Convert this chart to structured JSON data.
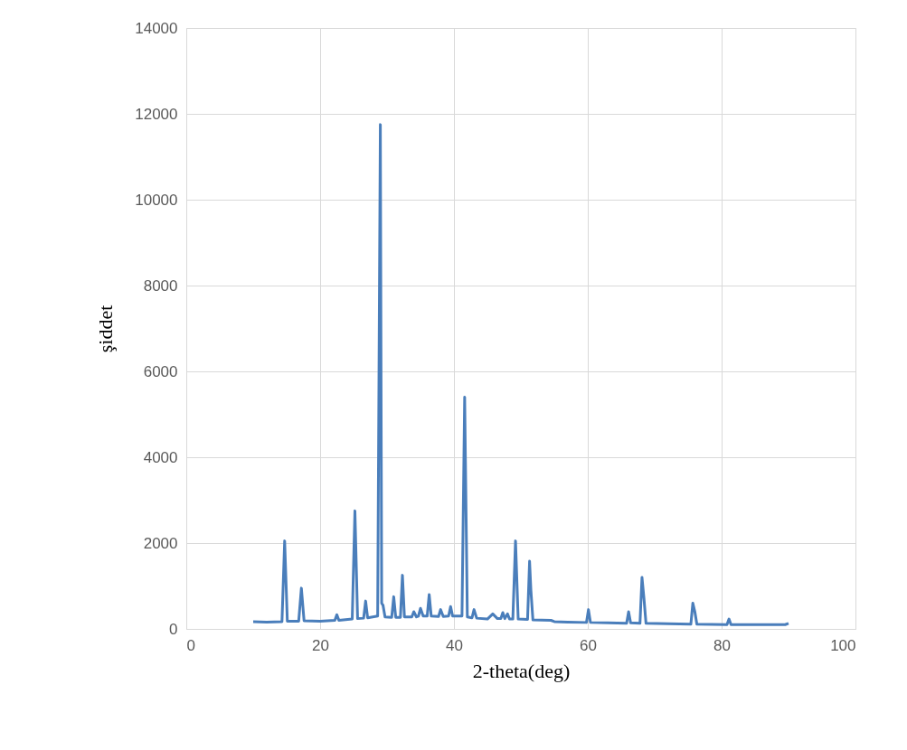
{
  "chart_data": {
    "type": "line",
    "xlabel": "2-theta(deg)",
    "ylabel": "şiddet",
    "xlim": [
      0,
      100
    ],
    "ylim": [
      0,
      14000
    ],
    "xticks": [
      0,
      20,
      40,
      60,
      80,
      100
    ],
    "yticks": [
      0,
      2000,
      4000,
      6000,
      8000,
      10000,
      12000,
      14000
    ],
    "grid": true,
    "marker": "none",
    "line_style": "solid",
    "series": [
      {
        "color": "#4a7ebb",
        "x": [
          10,
          12,
          14.3,
          14.7,
          15.1,
          16.8,
          17.2,
          17.6,
          20,
          22.2,
          22.5,
          22.8,
          24.8,
          25.2,
          25.6,
          26.5,
          26.8,
          27.1,
          28.6,
          29.0,
          29.2,
          29.4,
          29.7,
          30.7,
          31.0,
          31.3,
          32.0,
          32.3,
          32.6,
          33.7,
          34.0,
          34.4,
          34.7,
          35.0,
          35.4,
          36.0,
          36.3,
          36.6,
          37.7,
          38.0,
          38.4,
          39.2,
          39.5,
          39.8,
          41.2,
          41.6,
          42.0,
          42.7,
          43.0,
          43.4,
          45.0,
          45.8,
          46.5,
          47.0,
          47.3,
          47.6,
          48.0,
          48.3,
          48.8,
          49.2,
          49.6,
          51.0,
          51.3,
          51.5,
          51.8,
          54.5,
          55,
          57,
          59.8,
          60.1,
          60.4,
          63,
          65.8,
          66.1,
          66.4,
          67.8,
          68.1,
          68.4,
          68.7,
          72,
          75.4,
          75.7,
          76.0,
          76.3,
          80.8,
          81.1,
          81.4,
          85,
          89.5,
          90
        ],
        "values": [
          170,
          160,
          170,
          2050,
          180,
          180,
          950,
          190,
          180,
          200,
          330,
          200,
          230,
          2750,
          240,
          250,
          650,
          260,
          300,
          11750,
          600,
          550,
          280,
          270,
          750,
          270,
          270,
          1250,
          280,
          280,
          400,
          280,
          300,
          480,
          300,
          300,
          800,
          300,
          290,
          450,
          290,
          300,
          520,
          300,
          300,
          5400,
          280,
          260,
          450,
          250,
          230,
          350,
          240,
          240,
          380,
          240,
          350,
          230,
          230,
          2050,
          230,
          220,
          1580,
          900,
          210,
          200,
          170,
          160,
          150,
          450,
          150,
          140,
          130,
          400,
          140,
          130,
          1200,
          700,
          130,
          120,
          110,
          600,
          400,
          110,
          100,
          230,
          100,
          100,
          100,
          130
        ]
      }
    ]
  }
}
